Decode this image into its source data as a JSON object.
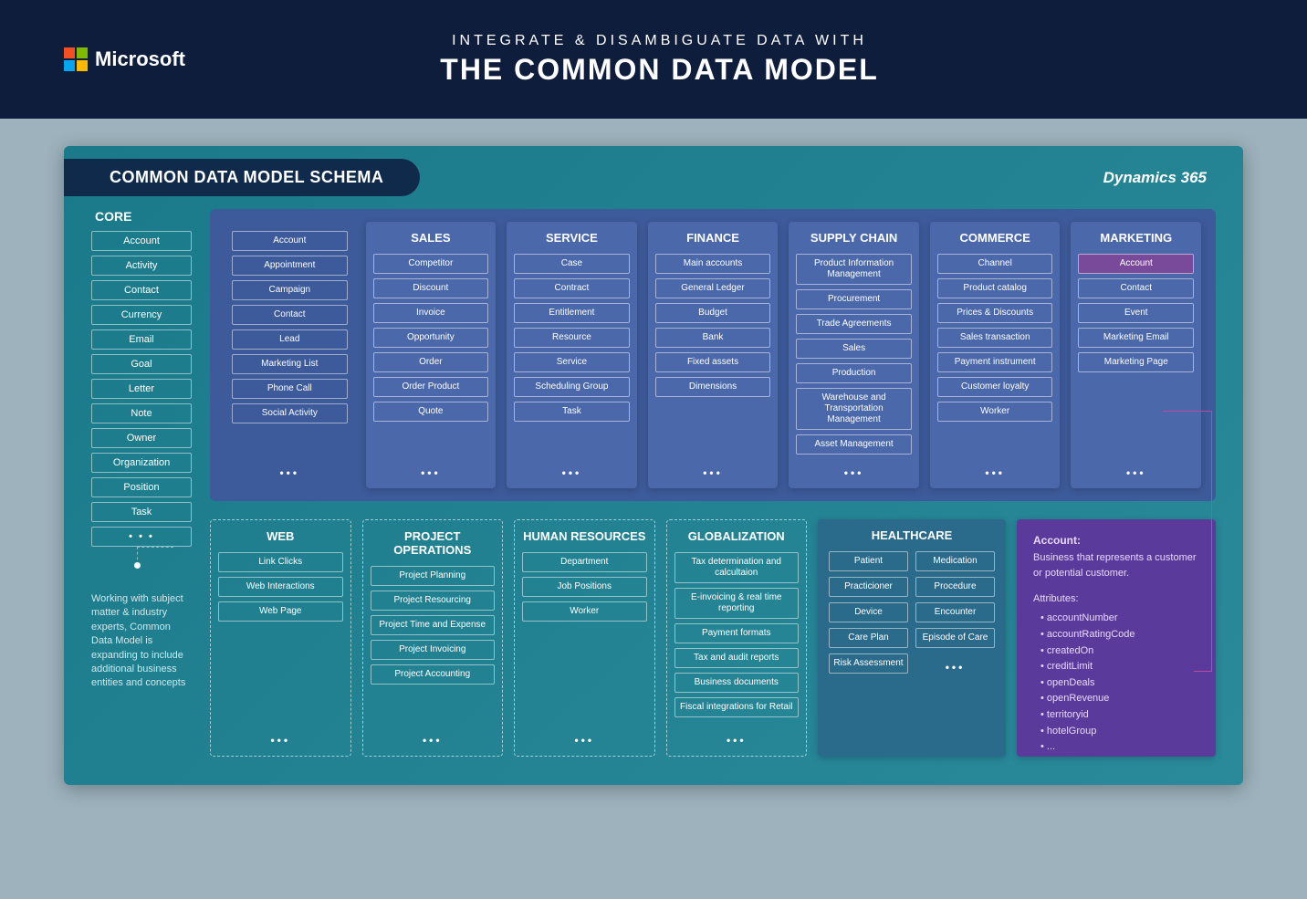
{
  "header": {
    "brand": "Microsoft",
    "subtitle": "INTEGRATE & DISAMBIGUATE DATA WITH",
    "title": "THE COMMON DATA MODEL"
  },
  "panel": {
    "schema_title": "COMMON DATA MODEL SCHEMA",
    "dynamics_label": "Dynamics 365",
    "core_title": "CORE",
    "core_items": [
      "Account",
      "Activity",
      "Contact",
      "Currency",
      "Email",
      "Goal",
      "Letter",
      "Note",
      "Owner",
      "Organization",
      "Position",
      "Task"
    ],
    "note": "Working with subject matter & industry experts, Common Data Model is expanding to include additional business entities and concepts",
    "general_items": [
      "Account",
      "Appointment",
      "Campaign",
      "Contact",
      "Lead",
      "Marketing List",
      "Phone Call",
      "Social Activity"
    ],
    "top_categories": [
      {
        "title": "SALES",
        "items": [
          "Competitor",
          "Discount",
          "Invoice",
          "Opportunity",
          "Order",
          "Order Product",
          "Quote"
        ]
      },
      {
        "title": "SERVICE",
        "items": [
          "Case",
          "Contract",
          "Entitlement",
          "Resource",
          "Service",
          "Scheduling Group",
          "Task"
        ]
      },
      {
        "title": "FINANCE",
        "items": [
          "Main accounts",
          "General Ledger",
          "Budget",
          "Bank",
          "Fixed assets",
          "Dimensions"
        ]
      },
      {
        "title": "SUPPLY CHAIN",
        "items": [
          "Product Information Management",
          "Procurement",
          "Trade Agreements",
          "Sales",
          "Production",
          "Warehouse and Transportation Management",
          "Asset Management"
        ]
      },
      {
        "title": "COMMERCE",
        "items": [
          "Channel",
          "Product catalog",
          "Prices & Discounts",
          "Sales transaction",
          "Payment instrument",
          "Customer loyalty",
          "Worker"
        ]
      },
      {
        "title": "MARKETING",
        "highlight_first": true,
        "items": [
          "Account",
          "Contact",
          "Event",
          "Marketing Email",
          "Marketing Page"
        ]
      }
    ],
    "bottom_dashed": [
      {
        "title": "WEB",
        "items": [
          "Link Clicks",
          "Web Interactions",
          "Web Page"
        ]
      },
      {
        "title": "PROJECT OPERATIONS",
        "items": [
          "Project Planning",
          "Project Resourcing",
          "Project Time and Expense",
          "Project Invoicing",
          "Project Accounting"
        ]
      },
      {
        "title": "HUMAN RESOURCES",
        "items": [
          "Department",
          "Job Positions",
          "Worker"
        ]
      },
      {
        "title": "GLOBALIZATION",
        "items": [
          "Tax determination and calcultaion",
          "E-invoicing & real time reporting",
          "Payment formats",
          "Tax and audit reports",
          "Business documents",
          "Fiscal integrations for Retail"
        ]
      }
    ],
    "healthcare": {
      "title": "HEALTHCARE",
      "col1": [
        "Patient",
        "Practicioner",
        "Device",
        "Care Plan",
        "Risk Assessment"
      ],
      "col2": [
        "Medication",
        "Procedure",
        "Encounter",
        "Episode of Care"
      ]
    },
    "detail": {
      "title": "Account:",
      "desc": "Business that represents a customer or potential customer.",
      "attrs_title": "Attributes:",
      "attrs": [
        "accountNumber",
        "accountRatingCode",
        "createdOn",
        "creditLimit",
        "openDeals",
        "openRevenue",
        "territoryid",
        "hotelGroup",
        "..."
      ]
    }
  },
  "colors": {
    "header_bg": "#0f1d3d",
    "page_bg": "#9db2bd",
    "panel_bg_start": "#1a7a8a",
    "panel_bg_end": "#2a8a9a",
    "schema_pill_bg": "#0f2a4a",
    "top_row_bg": "#3d5a9a",
    "category_bg": "#4a68aa",
    "solid_category_bg": "#2a6a8a",
    "detail_panel_bg": "#5a3a9a",
    "highlight_bg": "#7a4a9a",
    "connector": "#b84aa0",
    "ms_red": "#f25022",
    "ms_green": "#7fba00",
    "ms_blue": "#00a4ef",
    "ms_yellow": "#ffb900"
  }
}
